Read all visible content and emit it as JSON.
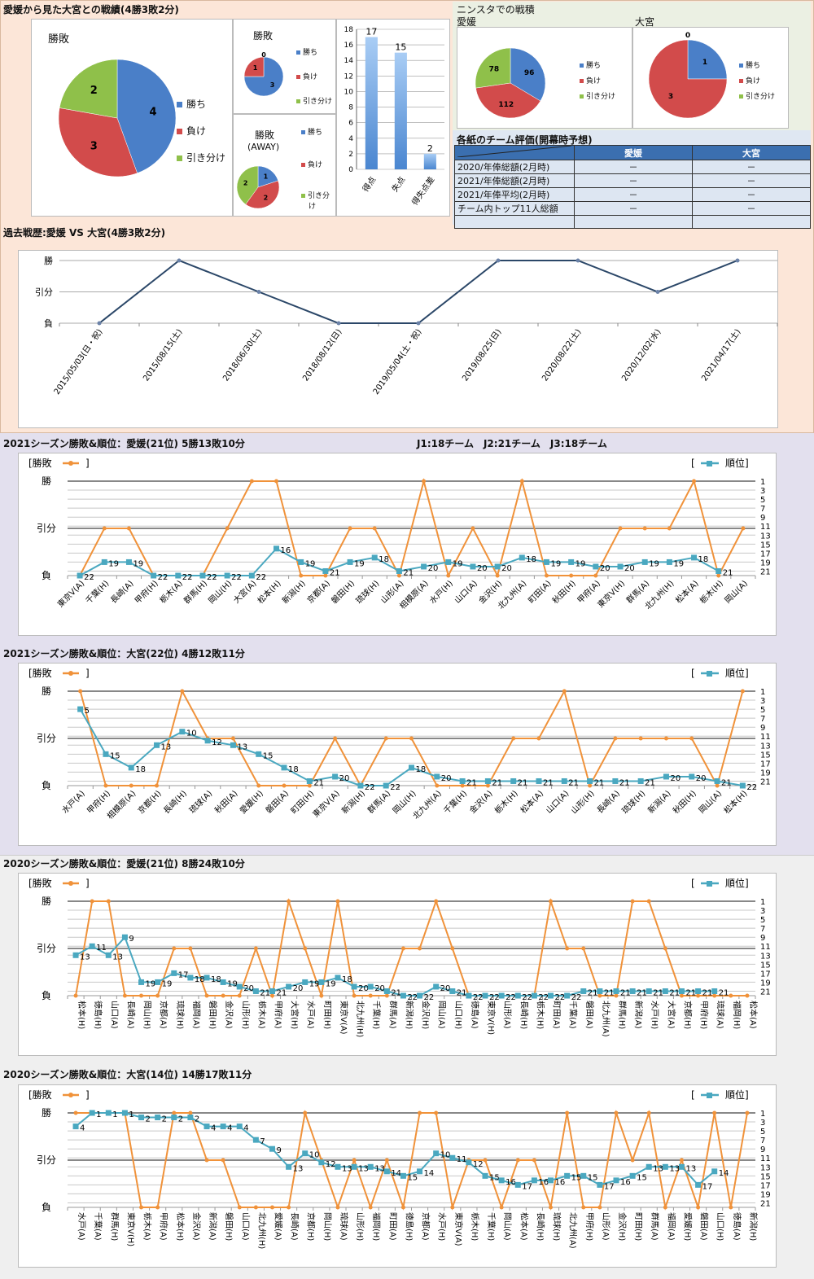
{
  "section1": {
    "title": "愛媛から見た大宮との戦績(4勝3敗2分)",
    "pie_total": {
      "title": "勝敗",
      "values": [
        4,
        3,
        2
      ],
      "labels": [
        "4",
        "3",
        "2"
      ]
    },
    "pie_home": {
      "title": "勝敗",
      "values": [
        3,
        1,
        0
      ],
      "labels": [
        "3",
        "1",
        "0"
      ]
    },
    "pie_away": {
      "title": "勝敗",
      "subtitle": "(AWAY)",
      "values": [
        1,
        2,
        2
      ],
      "labels": [
        "1",
        "2",
        "2"
      ]
    },
    "legend": [
      "勝ち",
      "負け",
      "引き分け"
    ],
    "legend_away": [
      "勝ち",
      "負け",
      "引き分",
      "け"
    ]
  },
  "ninsta": {
    "title": "ニンスタでの戦積",
    "ehime": {
      "name": "愛媛",
      "values": [
        96,
        112,
        78
      ],
      "labels": [
        "96",
        "112",
        "78"
      ]
    },
    "omiya": {
      "name": "大宮",
      "values": [
        1,
        3,
        0
      ],
      "labels": [
        "1",
        "3",
        "0"
      ]
    },
    "legend": [
      "勝ち",
      "負け",
      "引き分け"
    ]
  },
  "evaluation": {
    "title": "各紙のチーム評価(開幕時予想)",
    "headers": [
      "愛媛",
      "大宮"
    ],
    "rows": [
      {
        "label": "2020/年俸総額(2月時)",
        "ehime": "－",
        "omiya": "－"
      },
      {
        "label": "2021/年俸総額(2月時)",
        "ehime": "－",
        "omiya": "－"
      },
      {
        "label": "2021/年俸平均(2月時)",
        "ehime": "－",
        "omiya": "－"
      },
      {
        "label": "チーム内トップ11人総額",
        "ehime": "－",
        "omiya": "－"
      }
    ]
  },
  "history": {
    "title": "過去戦歴:愛媛 VS 大宮(4勝3敗2分)"
  },
  "season_header": {
    "teams_note": "J1:18チーム　J2:21チーム　J3:18チーム"
  },
  "legend_labels": {
    "result_open": "[勝敗",
    "result_close": "]",
    "rank_open": "[",
    "rank_close": "順位]"
  },
  "result_levels": [
    "勝",
    "引分",
    "負"
  ],
  "colors": {
    "win": "#4a7fc8",
    "loss": "#d24b4b",
    "draw": "#8fc04a",
    "result_line": "#f0923a",
    "rank_line": "#4aa8c0",
    "history_line": "#2b4768",
    "bar": "#4a86d0"
  },
  "chart_data": [
    {
      "type": "bar",
      "title": "",
      "categories": [
        "得点",
        "失点",
        "得失点差"
      ],
      "values": [
        17,
        15,
        2
      ],
      "ylim": [
        0,
        18
      ],
      "yticks": [
        "0",
        "2",
        "4",
        "6",
        "8",
        "10",
        "12",
        "14",
        "16",
        "18"
      ]
    },
    {
      "type": "line",
      "title": "過去戦歴:愛媛 VS 大宮(4勝3敗2分)",
      "categories": [
        "2015/05/03(日・祝)",
        "2015/08/15(土)",
        "2018/06/30(土)",
        "2018/08/12(日)",
        "2019/05/04(土・祝)",
        "2019/08/25(日)",
        "2020/08/22(土)",
        "2020/12/02(水)",
        "2021/04/17(土)"
      ],
      "values": [
        0,
        2,
        1,
        0,
        0,
        2,
        2,
        1,
        2
      ],
      "ylabels": [
        "負",
        "引分",
        "勝"
      ]
    },
    {
      "type": "line",
      "title": "2021シーズン勝敗&順位：愛媛(21位) 5勝13敗10分",
      "categories": [
        "東京V(A)",
        "千葉(H)",
        "長崎(A)",
        "甲府(H)",
        "栃木(A)",
        "群馬(H)",
        "岡山(H)",
        "大宮(A)",
        "松本(H)",
        "新潟(H)",
        "京都(A)",
        "磐田(H)",
        "琉球(H)",
        "山形(A)",
        "相模原(A)",
        "水戸(H)",
        "山口(A)",
        "金沢(H)",
        "北九州(A)",
        "町田(A)",
        "秋田(H)",
        "甲府(A)",
        "東京V(H)",
        "群馬(A)",
        "北九州(H)",
        "松本(A)",
        "栃木(H)",
        "岡山(A)"
      ],
      "series": [
        {
          "name": "勝敗",
          "values": [
            0,
            1,
            1,
            0,
            0,
            0,
            1,
            2,
            2,
            0,
            0,
            1,
            1,
            0,
            2,
            0,
            1,
            0,
            2,
            0,
            0,
            0,
            1,
            1,
            1,
            2,
            0,
            1
          ]
        },
        {
          "name": "順位",
          "values": [
            22,
            19,
            19,
            22,
            22,
            22,
            22,
            22,
            16,
            19,
            21,
            19,
            18,
            21,
            20,
            19,
            20,
            20,
            18,
            19,
            19,
            20,
            20,
            19,
            19,
            18,
            21,
            null
          ]
        }
      ],
      "ylim_rank": [
        1,
        22
      ]
    },
    {
      "type": "line",
      "title": "2021シーズン勝敗&順位：大宮(22位) 4勝12敗11分",
      "categories": [
        "水戸(A)",
        "甲府(H)",
        "相模原(A)",
        "京都(H)",
        "長崎(H)",
        "琉球(A)",
        "秋田(A)",
        "愛媛(H)",
        "磐田(A)",
        "町田(H)",
        "東京V(A)",
        "新潟(H)",
        "群馬(A)",
        "岡山(H)",
        "北九州(A)",
        "千葉(H)",
        "金沢(A)",
        "栃木(H)",
        "松本(A)",
        "山口(A)",
        "山形(H)",
        "長崎(A)",
        "琉球(H)",
        "新潟(A)",
        "秋田(H)",
        "岡山(A)",
        "松本(H)"
      ],
      "series": [
        {
          "name": "勝敗",
          "values": [
            2,
            0,
            0,
            0,
            2,
            1,
            1,
            0,
            0,
            0,
            1,
            0,
            1,
            1,
            0,
            0,
            0,
            1,
            1,
            2,
            0,
            1,
            1,
            1,
            1,
            0,
            2
          ]
        },
        {
          "name": "順位",
          "values": [
            5,
            15,
            18,
            13,
            10,
            12,
            13,
            15,
            18,
            21,
            20,
            22,
            22,
            18,
            20,
            21,
            21,
            21,
            21,
            21,
            21,
            21,
            21,
            20,
            20,
            21,
            22
          ]
        }
      ],
      "ylim_rank": [
        1,
        22
      ]
    },
    {
      "type": "line",
      "title": "2020シーズン勝敗&順位：愛媛(21位) 8勝24敗10分",
      "categories": [
        "松本(H)",
        "徳島(H)",
        "山口(A)",
        "長崎(A)",
        "岡山(H)",
        "京都(A)",
        "琉球(H)",
        "福岡(A)",
        "磐田(H)",
        "金沢(A)",
        "山形(H)",
        "栃木(A)",
        "甲府(A)",
        "大宮(H)",
        "水戸(A)",
        "町田(H)",
        "東京V(A)",
        "北九州(H)",
        "千葉(H)",
        "群馬(A)",
        "新潟(H)",
        "金沢(H)",
        "岡山(A)",
        "山口(H)",
        "徳島(A)",
        "東京V(H)",
        "山形(A)",
        "長崎(H)",
        "栃木(H)",
        "町田(A)",
        "千葉(A)",
        "磐田(A)",
        "北九州(A)",
        "群馬(H)",
        "新潟(A)",
        "水戸(H)",
        "大宮(A)",
        "京都(H)",
        "甲府(H)",
        "琉球(A)",
        "福岡(H)",
        "松本(A)"
      ],
      "series": [
        {
          "name": "勝敗",
          "values": [
            0,
            2,
            2,
            0,
            0,
            0,
            1,
            1,
            0,
            0,
            0,
            1,
            0,
            2,
            1,
            0,
            2,
            0,
            0,
            0,
            1,
            1,
            2,
            1,
            0,
            0,
            0,
            0,
            0,
            2,
            1,
            1,
            0,
            0,
            2,
            2,
            1,
            0,
            0,
            0,
            0,
            0
          ]
        },
        {
          "name": "順位",
          "values": [
            13,
            11,
            13,
            9,
            19,
            19,
            17,
            18,
            18,
            19,
            20,
            21,
            21,
            20,
            19,
            19,
            18,
            20,
            20,
            21,
            22,
            22,
            20,
            21,
            22,
            22,
            22,
            22,
            22,
            22,
            22,
            21,
            21,
            21,
            21,
            21,
            21,
            21,
            21,
            21,
            null,
            null
          ]
        }
      ],
      "ylim_rank": [
        1,
        22
      ]
    },
    {
      "type": "line",
      "title": "2020シーズン勝敗&順位：大宮(14位) 14勝17敗11分",
      "categories": [
        "水戸(A)",
        "千葉(A)",
        "群馬(H)",
        "東京V(H)",
        "栃木(A)",
        "甲府(A)",
        "松本(H)",
        "金沢(A)",
        "新潟(A)",
        "磐田(H)",
        "山口(A)",
        "北九州(H)",
        "愛媛(A)",
        "長崎(A)",
        "京都(H)",
        "岡山(H)",
        "琉球(A)",
        "山形(H)",
        "福岡(H)",
        "町田(A)",
        "徳島(H)",
        "京都(A)",
        "水戸(H)",
        "東京V(A)",
        "栃木(H)",
        "千葉(H)",
        "岡山(A)",
        "松本(A)",
        "長崎(H)",
        "琉球(H)",
        "北九州(A)",
        "甲府(H)",
        "山形(A)",
        "金沢(H)",
        "町田(H)",
        "群馬(A)",
        "福岡(A)",
        "愛媛(H)",
        "磐田(A)",
        "山口(H)",
        "徳島(A)",
        "新潟(H)"
      ],
      "series": [
        {
          "name": "勝敗",
          "values": [
            2,
            2,
            2,
            2,
            0,
            0,
            2,
            2,
            1,
            1,
            0,
            0,
            0,
            0,
            2,
            1,
            0,
            1,
            0,
            1,
            0,
            2,
            2,
            0,
            1,
            1,
            0,
            1,
            1,
            0,
            2,
            0,
            0,
            2,
            1,
            2,
            0,
            1,
            0,
            2,
            0,
            2
          ]
        },
        {
          "name": "順位",
          "values": [
            4,
            1,
            1,
            1,
            2,
            2,
            2,
            2,
            4,
            4,
            4,
            7,
            9,
            13,
            10,
            12,
            13,
            13,
            13,
            14,
            15,
            14,
            10,
            11,
            12,
            15,
            16,
            17,
            16,
            16,
            15,
            15,
            17,
            16,
            15,
            13,
            13,
            13,
            17,
            14,
            null,
            null
          ]
        }
      ],
      "ylim_rank": [
        1,
        22
      ]
    }
  ]
}
